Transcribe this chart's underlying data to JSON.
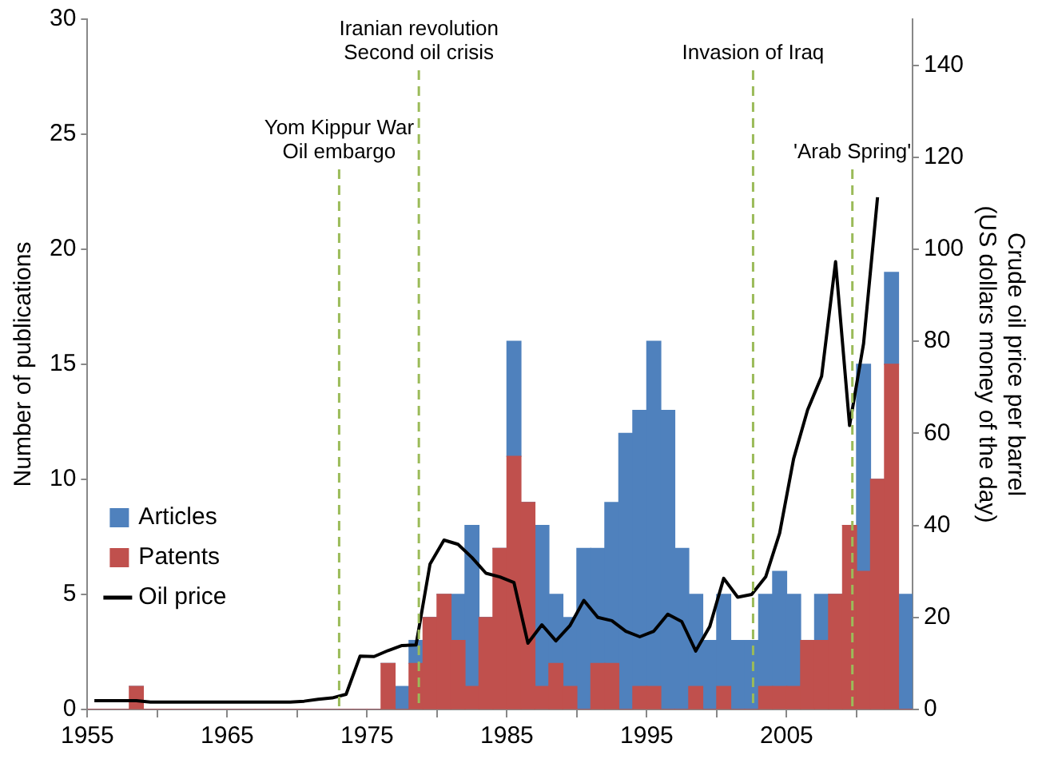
{
  "chart_data": {
    "type": "bar",
    "stacked": true,
    "ylabel": "Number of publications",
    "y2label": "Crude oil price per barrel\n(US dollars money of the day)",
    "x": [
      1955.5,
      1956.5,
      1957.5,
      1958.5,
      1959.5,
      1960.5,
      1961.5,
      1962.5,
      1963.5,
      1964.5,
      1965.5,
      1966.5,
      1967.5,
      1968.5,
      1969.5,
      1970.5,
      1971.5,
      1972.5,
      1973.5,
      1974.5,
      1975.5,
      1976.5,
      1977.5,
      1978.5,
      1979.5,
      1980.5,
      1981.5,
      1982.5,
      1983.5,
      1984.5,
      1985.5,
      1986.5,
      1987.5,
      1988.5,
      1989.5,
      1990.5,
      1991.5,
      1992.5,
      1993.5,
      1994.5,
      1995.5,
      1996.5,
      1997.5,
      1998.5,
      1999.5,
      2000.5,
      2001.5,
      2002.5,
      2003.5,
      2004.5,
      2005.5,
      2006.5,
      2007.5,
      2008.5,
      2009.5,
      2010.5,
      2011.5,
      2012.5,
      2013.5
    ],
    "xlim": [
      1955,
      2014
    ],
    "xticks": [
      1955,
      {
        "value": 1960,
        "label": null
      },
      1965,
      {
        "value": 1970,
        "label": null
      },
      1975,
      {
        "value": 1980,
        "label": null
      },
      1985,
      {
        "value": 1990,
        "label": null
      },
      1995,
      {
        "value": 2000,
        "label": null
      },
      2005,
      {
        "value": 2010,
        "label": null
      }
    ],
    "ylim": [
      0,
      30
    ],
    "yticks": [
      0,
      5,
      10,
      15,
      20,
      25,
      30
    ],
    "y2lim": [
      0,
      150
    ],
    "y2ticks": [
      0,
      20,
      40,
      60,
      80,
      100,
      120,
      140
    ],
    "grid": false,
    "legend": "bottom left",
    "series": [
      {
        "name": "Patents",
        "color": "#c0504d",
        "values": [
          0,
          0,
          0,
          1,
          0,
          0,
          0,
          0,
          0,
          0,
          0,
          0,
          0,
          0,
          0,
          0,
          0,
          0,
          0,
          0,
          0,
          2,
          0,
          2,
          4,
          5,
          3,
          1,
          4,
          7,
          11,
          9,
          1,
          2,
          1,
          0,
          2,
          2,
          0,
          1,
          1,
          0,
          0,
          1,
          0,
          1,
          0,
          0,
          1,
          1,
          1,
          3,
          3,
          5,
          8,
          6,
          10,
          15,
          0
        ]
      },
      {
        "name": "Articles",
        "color": "#4f81bd",
        "values": [
          0,
          0,
          0,
          0,
          0,
          0,
          0,
          0,
          0,
          0,
          0,
          0,
          0,
          0,
          0,
          0,
          0,
          0,
          0,
          0,
          0,
          0,
          1,
          1,
          0,
          0,
          2,
          7,
          0,
          0,
          5,
          0,
          7,
          3,
          3,
          7,
          5,
          7,
          12,
          12,
          15,
          13,
          7,
          4,
          3,
          4,
          3,
          3,
          4,
          5,
          4,
          0,
          2,
          0,
          0,
          9,
          0,
          4,
          5
        ]
      },
      {
        "name": "Oil price",
        "type": "line",
        "axis": "y2",
        "color": "#000000",
        "marker": "none",
        "line_style": "solid",
        "x": [
          1955.5,
          1956.5,
          1957.5,
          1958.5,
          1959.5,
          1960.5,
          1961.5,
          1962.5,
          1963.5,
          1964.5,
          1965.5,
          1966.5,
          1967.5,
          1968.5,
          1969.5,
          1970.5,
          1971.5,
          1972.5,
          1973.5,
          1974.5,
          1975.5,
          1976.5,
          1977.5,
          1978.5,
          1979.5,
          1980.5,
          1981.5,
          1982.5,
          1983.5,
          1984.5,
          1985.5,
          1986.5,
          1987.5,
          1988.5,
          1989.5,
          1990.5,
          1991.5,
          1992.5,
          1993.5,
          1994.5,
          1995.5,
          1996.5,
          1997.5,
          1998.5,
          1999.5,
          2000.5,
          2001.5,
          2002.5,
          2003.5,
          2004.5,
          2005.5,
          2006.5,
          2007.5,
          2008.5,
          2009.5,
          2010.5,
          2011.5
        ],
        "values": [
          1.9,
          1.9,
          1.9,
          1.9,
          1.6,
          1.6,
          1.6,
          1.6,
          1.6,
          1.6,
          1.6,
          1.6,
          1.6,
          1.6,
          1.6,
          1.8,
          2.2,
          2.5,
          3.3,
          11.6,
          11.5,
          12.8,
          13.9,
          14,
          31.6,
          36.8,
          35.9,
          33,
          29.6,
          28.8,
          27.6,
          14.4,
          18.4,
          14.9,
          18.2,
          23.7,
          20,
          19.3,
          17,
          15.8,
          17,
          20.7,
          19.1,
          12.7,
          18,
          28.5,
          24.4,
          25,
          28.8,
          38.3,
          54.5,
          65.1,
          72.4,
          97.3,
          61.7,
          79.5,
          111.3
        ]
      }
    ],
    "ref_lines": [
      {
        "axis": "x",
        "value": 1973,
        "label": "Yom Kippur War\nOil embargo",
        "color": "#9bbb59",
        "line_style": "dashed"
      },
      {
        "axis": "x",
        "value": 1978.7,
        "label": "Iranian revolution\nSecond oil crisis",
        "color": "#9bbb59",
        "line_style": "dashed"
      },
      {
        "axis": "x",
        "value": 2002.6,
        "label": "Invasion of Iraq",
        "color": "#9bbb59",
        "line_style": "dashed"
      },
      {
        "axis": "x",
        "value": 2009.7,
        "label": "'Arab Spring'",
        "color": "#9bbb59",
        "line_style": "dashed"
      }
    ]
  }
}
